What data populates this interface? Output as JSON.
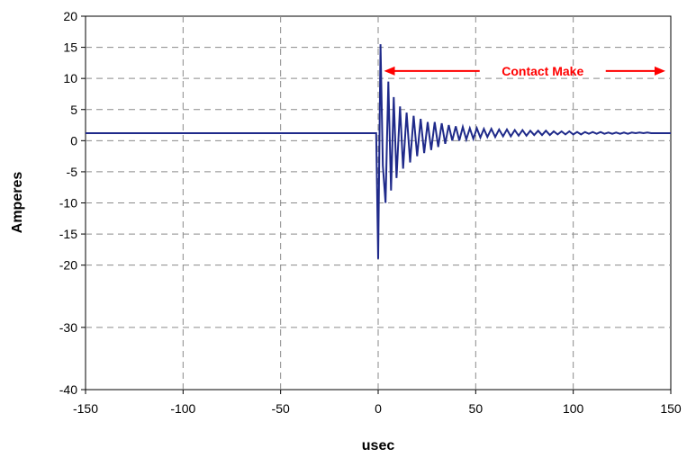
{
  "chart_data": {
    "type": "line",
    "title": "",
    "xlabel": "usec",
    "ylabel": "Amperes",
    "xlim": [
      -150,
      150
    ],
    "ylim": [
      -40,
      20
    ],
    "xticks": [
      -150,
      -100,
      -50,
      0,
      50,
      100,
      150
    ],
    "yticks": [
      -40,
      -30,
      -20,
      -15,
      -10,
      -5,
      0,
      5,
      10,
      15,
      20
    ],
    "grid": true,
    "legend": "none",
    "colors": {
      "series": "#1f2a8a",
      "annotation": "#ff0000",
      "grid": "#8a8a8a"
    },
    "series": [
      {
        "x": [
          -150,
          -100,
          -50,
          -1,
          0,
          1.2,
          2.4,
          3.8,
          5.2,
          6.6,
          8.0,
          9.4,
          11.2,
          12.8,
          14.6,
          16.4,
          18.2,
          20.0,
          21.8,
          23.6,
          25.4,
          27.2,
          29.0,
          30.8,
          32.6,
          34.4,
          36.2,
          38.0,
          39.8,
          41.6,
          43.4,
          45.2,
          47.0,
          48.8,
          50.6,
          52.4,
          54.2,
          56.0,
          58.0,
          60.0,
          62.0,
          64.0,
          66.0,
          68.0,
          70.0,
          72.0,
          74.0,
          76.0,
          78.0,
          80.0,
          82.0,
          84.0,
          86.0,
          88.0,
          90.0,
          92.0,
          94.0,
          96.0,
          98.0,
          100.0,
          102.0,
          104.0,
          106.0,
          108.0,
          110.0,
          112.0,
          114.0,
          116.0,
          118.0,
          120.0,
          122.0,
          124.0,
          126.0,
          128.0,
          130.0,
          132.0,
          134.0,
          136.0,
          138.0,
          140.0,
          142.0,
          144.0,
          146.0,
          148.0,
          150.0
        ],
        "y": [
          1.2,
          1.2,
          1.2,
          1.2,
          -19,
          15.5,
          -4,
          -10,
          9.5,
          -8,
          7,
          -6,
          5.5,
          -4.5,
          4.5,
          -3.5,
          4,
          -2.5,
          3.5,
          -2,
          3,
          -1.5,
          3,
          -1,
          2.8,
          -0.5,
          2.5,
          0,
          2.3,
          0,
          2.2,
          0.2,
          2,
          0.3,
          2,
          0.5,
          1.9,
          0.6,
          1.9,
          0.6,
          1.8,
          0.7,
          1.8,
          0.7,
          1.7,
          0.8,
          1.7,
          0.8,
          1.6,
          0.9,
          1.6,
          0.9,
          1.6,
          0.9,
          1.5,
          1,
          1.5,
          1,
          1.5,
          1,
          1.4,
          1,
          1.4,
          1.1,
          1.4,
          1.1,
          1.4,
          1.1,
          1.3,
          1.1,
          1.3,
          1.1,
          1.3,
          1.1,
          1.3,
          1.2,
          1.3,
          1.2,
          1.3,
          1.2,
          1.2,
          1.2,
          1.2,
          1.2,
          1.2
        ]
      }
    ],
    "annotations": [
      {
        "text": "Contact Make",
        "x_start": 3,
        "x_end": 150,
        "y": 11.2
      }
    ]
  }
}
